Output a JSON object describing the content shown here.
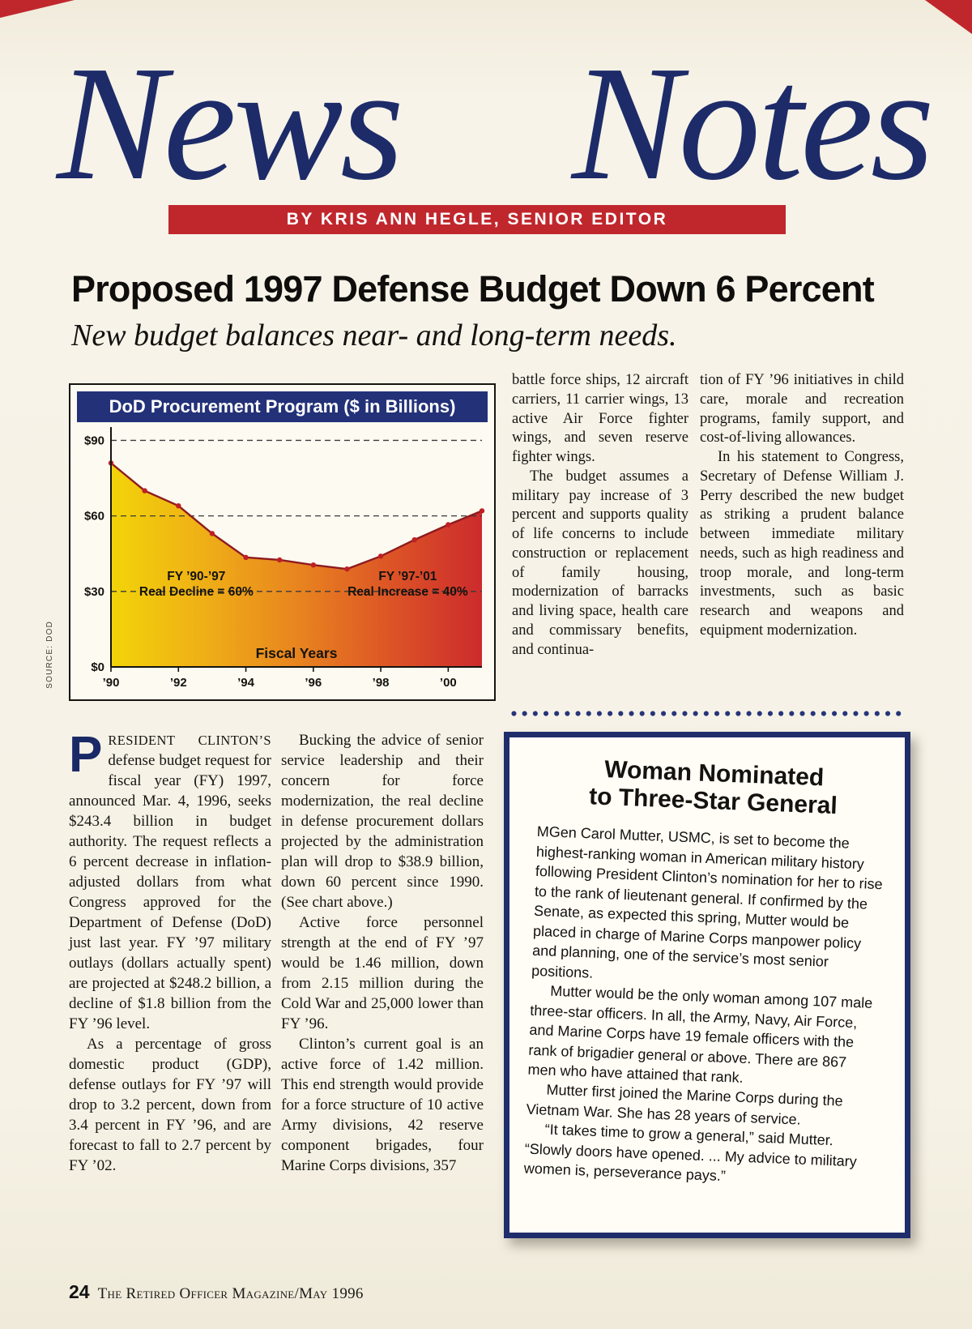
{
  "page": {
    "masthead": {
      "word1": "News",
      "word2": "Notes"
    },
    "byline_bar": "BY KRIS ANN HEGLE, SENIOR EDITOR",
    "footer": {
      "page_number": "24",
      "magazine": "The Retired Officer Magazine/May 1996"
    }
  },
  "article": {
    "headline": "Proposed 1997 Defense Budget Down 6 Percent",
    "subhead": "New budget balances near- and long-term needs.",
    "right_col_a": {
      "paragraphs": [
        "battle force ships, 12 aircraft carriers, 11 carrier wings, 13 active Air Force fighter wings, and seven reserve fighter wings.",
        "The budget assumes a military pay increase of 3 percent and supports quality of life concerns to include construction or replacement of family housing, modernization of barracks and living space, health care and commissary benefits, and continua-"
      ]
    },
    "right_col_b": {
      "paragraphs": [
        "tion of FY ’96 initiatives in child care, morale and recreation programs, family support, and cost-of-living allowances.",
        "In his statement to Congress, Secretary of Defense William J. Perry described the new budget as striking a prudent balance between immediate military needs, such as high readiness and troop morale, and long-term investments, such as basic research and weapons and equipment modernization."
      ]
    },
    "body_col_1": {
      "lead_cap": "P",
      "lead_smallcaps": "RESIDENT CLINTON’S",
      "lead_rest": " defense budget request for fiscal year (FY) 1997, announced Mar. 4, 1996, seeks $243.4 billion in budget authority. The request reflects a 6 percent decrease in inflation-adjusted dollars from what Congress approved for the Department of Defense (DoD) just last year. FY ’97 military outlays (dollars actually spent) are projected at $248.2 billion, a decline of $1.8 billion from the FY ’96 level.",
      "paragraphs": [
        "As a percentage of gross domestic product (GDP), defense outlays for FY ’97 will drop to 3.2 percent, down from 3.4 percent in FY ’96, and are forecast to fall to 2.7 percent by FY ’02."
      ]
    },
    "body_col_2": {
      "paragraphs": [
        "Bucking the advice of senior service leadership and their concern for force modernization, the real decline in defense procurement dollars projected by the administration plan will drop to $38.9 billion, down 60 percent since 1990. (See chart above.)",
        "Active force personnel strength at the end of FY ’97 would be 1.46 million, down from 2.15 million during the Cold War and 25,000 lower than FY ’96.",
        "Clinton’s current goal is an active force of 1.42 million. This end strength would provide for a force structure of 10 active Army divisions, 42 reserve component brigades, four Marine Corps divisions, 357"
      ]
    }
  },
  "sidebar": {
    "title_line1": "Woman Nominated",
    "title_line2": "to Three-Star General",
    "paragraphs": [
      "MGen Carol Mutter, USMC, is set to become the highest-ranking woman in American military history following President Clinton’s nomination for her to rise to the rank of lieutenant general. If confirmed by the Senate, as expected this spring, Mutter would be placed in charge of Marine Corps manpower policy and planning, one of the service’s most senior positions.",
      "Mutter would be the only woman among 107 male three-star officers. In all, the Army, Navy, Air Force, and Marine Corps have 19 female officers with the rank of brigadier general or above. There are 867 men who have attained that rank.",
      "Mutter first joined the Marine Corps during the Vietnam War. She has 28 years of service.",
      "“It takes time to grow a general,” said Mutter. “Slowly doors have opened. ... My advice to military women is, perseverance pays.”"
    ]
  },
  "chart_data": {
    "type": "area",
    "title": "DoD Procurement Program ($ in Billions)",
    "source": "SOURCE: DOD",
    "xlabel": "Fiscal Years",
    "x": [
      1990,
      1991,
      1992,
      1993,
      1994,
      1995,
      1996,
      1997,
      1998,
      1999,
      2000,
      2001
    ],
    "values": [
      81,
      70,
      64,
      53,
      43.5,
      42.5,
      40.5,
      38.9,
      44,
      50.5,
      56.5,
      62
    ],
    "x_ticks": [
      1990,
      1992,
      1994,
      1996,
      1998,
      2000
    ],
    "x_tick_labels": [
      "’90",
      "’92",
      "’94",
      "’96",
      "’98",
      "’00"
    ],
    "y_ticks": [
      0,
      30,
      60,
      90
    ],
    "y_tick_labels": [
      "$0",
      "$30",
      "$60",
      "$90"
    ],
    "ylim": [
      0,
      94
    ],
    "grid": "dashed horizontal",
    "legend": "none",
    "annotations": [
      {
        "lines": [
          "FY ’90-’97",
          "Real Decline = 60%"
        ],
        "x_frac": 0.23,
        "y_value": 30
      },
      {
        "lines": [
          "FY ’97-’01",
          "Real Increase = 40%"
        ],
        "x_frac": 0.8,
        "y_value": 30
      }
    ],
    "colors": {
      "gradient": [
        "#f2d409",
        "#efaf17",
        "#e8851f",
        "#dd5526",
        "#cc2b2c"
      ],
      "line": "#8e1b20",
      "dot": "#bf2025",
      "header_bg": "#233178",
      "header_text": "#ffffff",
      "grid_line": "#3a3a3a"
    }
  }
}
